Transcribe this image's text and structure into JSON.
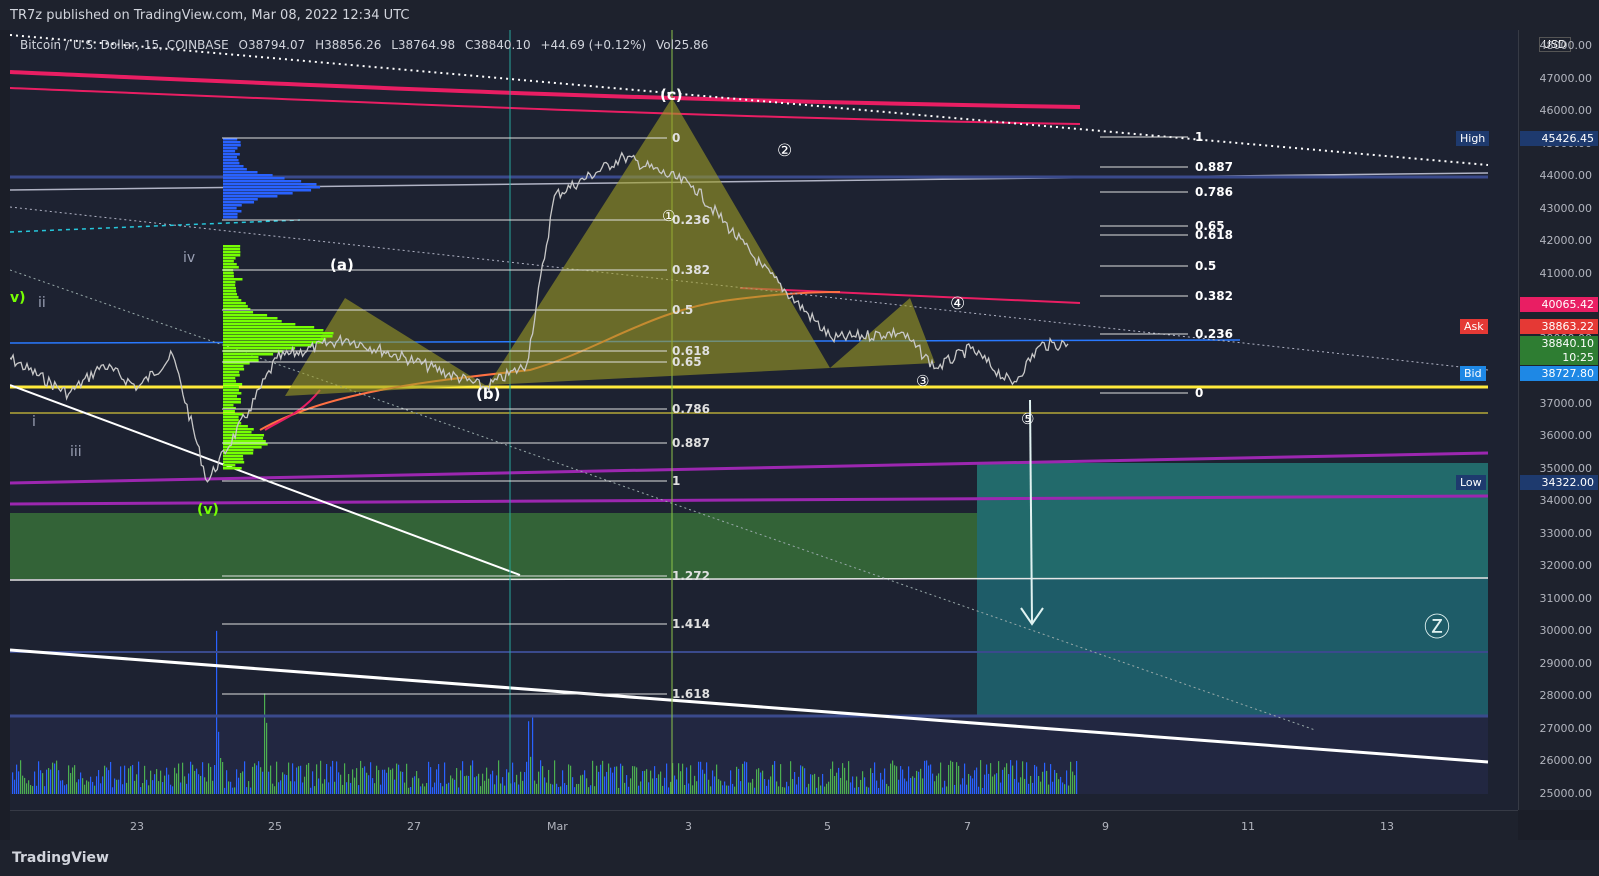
{
  "header": {
    "publish_text": "TR7z published on TradingView.com, Mar 08, 2022 12:34 UTC"
  },
  "legend": {
    "symbol": "Bitcoin / U.S. Dollar, 15, COINBASE",
    "open": "O38794.07",
    "high": "H38856.26",
    "low": "L38764.98",
    "close": "C38840.10",
    "change": "+44.69 (+0.12%)",
    "volume": "Vol25.86"
  },
  "price_axis": {
    "currency": "USD",
    "ticks": [
      "48000.00",
      "47000.00",
      "46000.00",
      "45000.00",
      "44000.00",
      "43000.00",
      "42000.00",
      "41000.00",
      "40000.00",
      "39000.00",
      "38000.00",
      "37000.00",
      "36000.00",
      "35000.00",
      "34000.00",
      "33000.00",
      "32000.00",
      "31000.00",
      "30000.00",
      "29000.00",
      "28000.00",
      "27000.00",
      "26000.00",
      "25000.00"
    ],
    "tags": {
      "high_label": "High",
      "high_value": "45426.45",
      "red_line_value": "40065.42",
      "ask_label": "Ask",
      "ask_value": "38863.22",
      "last_value": "38840.10",
      "countdown": "10:25",
      "bid_label": "Bid",
      "bid_value": "38727.80",
      "low_label": "Low",
      "low_value": "34322.00"
    }
  },
  "time_axis": {
    "ticks": [
      "23",
      "25",
      "27",
      "Mar",
      "3",
      "5",
      "7",
      "9",
      "11",
      "13"
    ]
  },
  "annotations": {
    "wave_a": "(a)",
    "wave_b": "(b)",
    "wave_c": "(c)",
    "wave_iv": "iv",
    "wave_ii": "ii",
    "wave_i": "i",
    "wave_iii": "iii",
    "wave_v_left": "v)",
    "wave_v_bottom": "(v)",
    "circle_1": "①",
    "circle_2": "②",
    "circle_3": "③",
    "circle_4": "④",
    "circle_5": "⑤",
    "circle_z": "Ⓩ"
  },
  "fib_left": [
    "0",
    "0.236",
    "0.382",
    "0.5",
    "0.618",
    "0.65",
    "0.786",
    "0.887",
    "1",
    "1.272",
    "1.414",
    "1.618"
  ],
  "fib_right": [
    "1",
    "0.887",
    "0.786",
    "0.65",
    "0.618",
    "0.5",
    "0.382",
    "0.236",
    "0"
  ],
  "footer": {
    "brand": "TradingView"
  },
  "colors": {
    "background": "#1d2231",
    "price_line": "#c8c8c8",
    "ma_red": "#e91e63",
    "support_yellow": "#ffeb3b",
    "support_purple": "#9c27b0",
    "bid_blue": "#2962ff",
    "volume_profile_green": "#76ff03",
    "volume_profile_blue": "#2962ff",
    "target_zone": "#26a69a",
    "triangle_fill": "#9e9d24"
  },
  "chart_data": {
    "type": "line",
    "title": "Bitcoin / U.S. Dollar, 15, COINBASE",
    "ylim": [
      24500,
      48500
    ],
    "x_ticks": [
      "23",
      "25",
      "27",
      "Mar",
      "3",
      "5",
      "7",
      "9",
      "11",
      "13"
    ],
    "price_path": [
      {
        "x": "Feb 21",
        "y": 38600
      },
      {
        "x": "Feb 22",
        "y": 37300
      },
      {
        "x": "Feb 22.5",
        "y": 38200
      },
      {
        "x": "Feb 23",
        "y": 37500
      },
      {
        "x": "Feb 23.5",
        "y": 38500
      },
      {
        "x": "Feb 24",
        "y": 34600
      },
      {
        "x": "Feb 24.6",
        "y": 36800
      },
      {
        "x": "Feb 25",
        "y": 38400
      },
      {
        "x": "Feb 26",
        "y": 39000
      },
      {
        "x": "Feb 27",
        "y": 38300
      },
      {
        "x": "Feb 28",
        "y": 37500
      },
      {
        "x": "Feb 28.6",
        "y": 38200
      },
      {
        "x": "Mar 1",
        "y": 43400
      },
      {
        "x": "Mar 2",
        "y": 44600
      },
      {
        "x": "Mar 3",
        "y": 43700
      },
      {
        "x": "Mar 4",
        "y": 41200
      },
      {
        "x": "Mar 5",
        "y": 39000
      },
      {
        "x": "Mar 6",
        "y": 39200
      },
      {
        "x": "Mar 6.5",
        "y": 38100
      },
      {
        "x": "Mar 7",
        "y": 38700
      },
      {
        "x": "Mar 7.6",
        "y": 37600
      },
      {
        "x": "Mar 8",
        "y": 38800
      },
      {
        "x": "Mar 8.4",
        "y": 38840
      }
    ],
    "levels": {
      "high": 45426.45,
      "low": 34322.0,
      "ask": 38863.22,
      "bid": 38727.8,
      "last": 38840.1,
      "red_line": 40065.42
    }
  }
}
